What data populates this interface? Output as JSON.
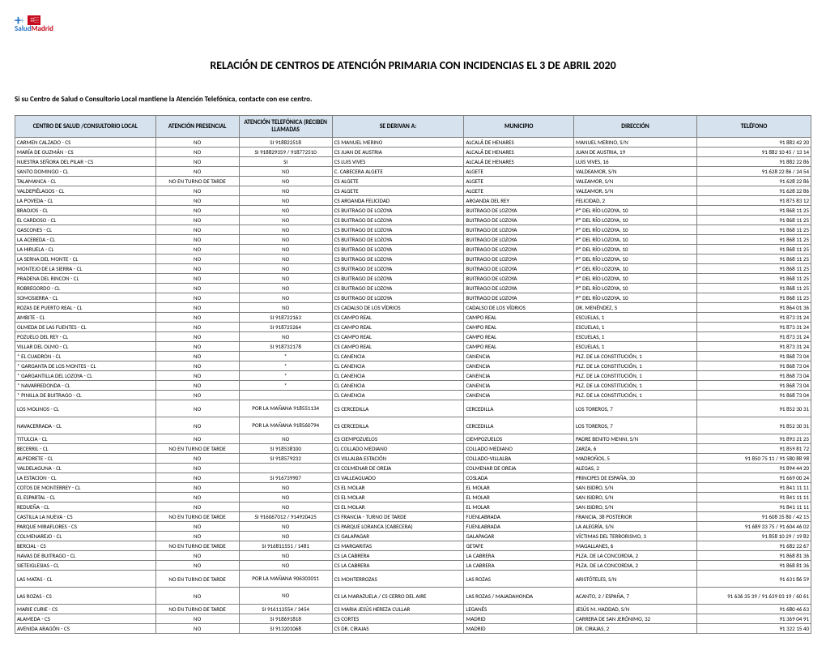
{
  "logo": {
    "brand_a": "Salud",
    "brand_b": "Madrid"
  },
  "title": "RELACIÓN DE CENTROS DE ATENCIÓN PRIMARIA CON INCIDENCIAS EL 3 DE ABRIL 2020",
  "subtitle": "Si su Centro de Salud o Consultorio Local mantiene la Atención Telefónica, contacte con ese centro.",
  "columns": [
    "CENTRO DE SALUD /CONSULTORIO LOCAL",
    "ATENCIÓN PRESENCIAL",
    "ATENCIÓN TELEFÓNICA (RECIBEN LLAMADAS",
    "SE DERIVAN A:",
    "MUNICIPIO",
    "DIRECCIÓN",
    "TELÉFONO"
  ],
  "col_align": [
    "left",
    "center",
    "center",
    "left",
    "left",
    "left",
    "right"
  ],
  "rows": [
    [
      "CARMEN CALZADO - CS",
      "NO",
      "SI     918822518",
      "CS MANUEL MERINO",
      "ALCALÁ DE HENARES",
      "MANUEL MERINO, S/N",
      "91 882 42 20"
    ],
    [
      "MARÍA DE GUZMÁN - CS",
      "NO",
      "SI     918829359 / 918772510",
      "CS JUAN DE AUSTRIA",
      "ALCALÁ DE HENARES",
      "JUAN DE AUSTRIA, 19",
      "91 882 10 45 / 13 14"
    ],
    [
      "NUESTRA SEÑORA DEL PILAR - CS",
      "NO",
      "SI",
      "CS LUIS VIVES",
      "ALCALÁ DE HENARES",
      "LUIS VIVES, 16",
      "91  882 22 86"
    ],
    [
      "SANTO DOMINGO - CL",
      "NO",
      "NO",
      "C. CABECERA ALGETE",
      "ALGETE",
      "VALDEAMOR, S/N",
      "91 628 22 86 / 24 54"
    ],
    [
      "TALAMANCA - CL",
      "NO EN TURNO DE TARDE",
      "NO",
      "CS ALGETE",
      "ALGETE",
      "VALEAMOR, S/N",
      "91 628 22 86"
    ],
    [
      "VALDEPIÉLAGOS - CL",
      "NO",
      "NO",
      "CS ALGETE",
      "ALGETE",
      "VALEAMOR, S/N",
      "91 628 22 86"
    ],
    [
      "LA POVEDA - CL",
      "NO",
      "NO",
      "CS ARGANDA FELICIDAD",
      "ARGANDA DEL REY",
      "FELICIDAD, 2",
      "91 875 83 12"
    ],
    [
      "BRAOJOS - CL",
      "NO",
      "NO",
      "CS BUITRAGO DE LOZOYA",
      "BUITRAGO DE LOZOYA",
      "Pº DEL RÍO LOZOYA, 10",
      "91 868 11 25"
    ],
    [
      "EL CARDOSO - CL",
      "NO",
      "NO",
      "CS BUITRAGO DE LOZOYA",
      "BUITRAGO DE LOZOYA",
      "Pº DEL RÍO LOZOYA, 10",
      "91 868 11 25"
    ],
    [
      "GASCONES - CL",
      "NO",
      "NO",
      "CS BUITRAGO DE LOZOYA",
      "BUITRAGO DE LOZOYA",
      "Pº DEL RÍO LOZOYA, 10",
      "91 868 11 25"
    ],
    [
      "LA ACEBEDA - CL",
      "NO",
      "NO",
      "CS BUITRAGO DE LOZOYA",
      "BUITRAGO DE LOZOYA",
      "Pº DEL RÍO LOZOYA, 10",
      "91 868 11 25"
    ],
    [
      "LA HIRUELA - CL",
      "NO",
      "NO",
      "CS BUITRAGO DE LOZOYA",
      "BUITRAGO DE LOZOYA",
      "Pº DEL RÍO LOZOYA, 10",
      "91 868 11 25"
    ],
    [
      "LA SERNA DEL MONTE - CL",
      "NO",
      "NO",
      "CS BUITRAGO DE LOZOYA",
      "BUITRAGO DE LOZOYA",
      "Pº DEL RÍO LOZOYA, 10",
      "91 868 11 25"
    ],
    [
      "MONTEJO DE LA SIERRA - CL",
      "NO",
      "NO",
      "CS BUITRAGO DE LOZOYA",
      "BUITRAGO DE LOZOYA",
      "Pº DEL RÍO LOZOYA, 10",
      "91 868 11 25"
    ],
    [
      "PRADENA DEL RINCON - CL",
      "NO",
      "NO",
      "CS BUITRAGO DE LOZOYA",
      "BUITRAGO DE LOZOYA",
      "Pº DEL RÍO LOZOYA, 10",
      "91 868 11 25"
    ],
    [
      "ROBREGORDO - CL",
      "NO",
      "NO",
      "CS BUITRAGO DE LOZOYA",
      "BUITRAGO DE LOZOYA",
      "Pº DEL RÍO LOZOYA, 10",
      "91 868 11 25"
    ],
    [
      "SOMOSIERRA - CL",
      "NO",
      "NO",
      "CS BUITRAGO DE LOZOYA",
      "BUITRAGO DE LOZOYA",
      "Pº DEL RÍO LOZOYA, 10",
      "91 868 11 25"
    ],
    [
      "ROZAS DE PUERTO REAL - CL",
      "NO",
      "NO",
      "CS CADALSO DE LOS VÍDRIOS",
      "CADALSO DE LOS VÍDRIOS",
      "DR. MENÉNDEZ, 5",
      "91 864 01 36"
    ],
    [
      "AMBITE - CL",
      "NO",
      "SI    918722163",
      "CS CAMPO REAL",
      "CAMPO REAL",
      "ESCUELAS, 1",
      "91 873 31 24"
    ],
    [
      "OLMEDA DE LAS FUENTES - CL",
      "NO",
      "SI    918725264",
      "CS CAMPO REAL",
      "CAMPO REAL",
      "ESCUELAS, 1",
      "91 873 31 24"
    ],
    [
      "POZUELO DEL REY - CL",
      "NO",
      "NO",
      "CS CAMPO REAL",
      "CAMPO REAL",
      "ESCUELAS, 1",
      "91 873 31 24"
    ],
    [
      "VILLAR DEL OLMO - CL",
      "NO",
      "SI    918732178",
      "CS CAMPO REAL",
      "CAMPO REAL",
      "ESCUELAS, 1",
      "91 873 31 24"
    ],
    [
      "* EL CUADRON - CL",
      "NO",
      "*",
      "CL CANENCIA",
      "CANENCIA",
      "PLZ. DE LA CONSTITUCIÓN, 1",
      "91 868 73 04"
    ],
    [
      "* GARGANTA DE LOS MONTES - CL",
      "NO",
      "*",
      "CL CANENCIA",
      "CANENCIA",
      "PLZ. DE LA CONSTITUCIÓN, 1",
      "91 868 73 04"
    ],
    [
      "* GARGANTILLA DEL LOZOYA - CL",
      "NO",
      "*",
      "CL CANENCIA",
      "CANENCIA",
      "PLZ. DE LA CONSTITUCIÓN, 1",
      "91 868 73 04"
    ],
    [
      "* NAVARREDONDA - CL",
      "NO",
      "*",
      "CL CANENCIA",
      "CANENCIA",
      "PLZ. DE LA CONSTITUCIÓN, 1",
      "91 868 73 04"
    ],
    [
      "* PINILLA DE BUITRAGO - CL",
      "NO",
      "",
      "CL CANENCIA",
      "CANENCIA",
      "PLZ. DE LA CONSTITUCIÓN, 1",
      "91 868 73 04"
    ],
    [
      "LOS MOLINOS - CL",
      "NO",
      "POR LA MAÑANA 918551134",
      "CS CERCEDILLA",
      "CERCEDILLA",
      "LOS TOREROS, 7",
      "91 852 30 31"
    ],
    [
      "NAVACERRADA - CL",
      "NO",
      "POR LA MAÑANA 918560794",
      "CS CERCEDILLA",
      "CERCEDILLA",
      "LOS TOREROS, 7",
      "91 852 30 31"
    ],
    [
      "TITULCIA - CL",
      "NO",
      "NO",
      "CS CIEMPOZUELOS",
      "CIEMPOZUELOS",
      "PADRE BENITO MENNI, S/N",
      "91 893 21 25"
    ],
    [
      "BECERRIL - CL",
      "NO EN TURNO DE TARDE",
      "SI    918538100",
      "CL COLLADO MEDIANO",
      "COLLADO MEDIANO",
      "ZARZA, 6",
      "91 859 81 72"
    ],
    [
      "ALPEDRETE - CL",
      "NO",
      "SI   918579232",
      "CS VILLALBA ESTACIÓN",
      "COLLADO-VILLALBA",
      "MADROÑOS, 5",
      "91 850 75 11 / 91 580 88 98"
    ],
    [
      "VALDELAGUNA - CL",
      "NO",
      "",
      "CS COLMENAR DE OREJA",
      "COLMENAR DE OREJA",
      "ALEGAS, 2",
      "91 894 44 20"
    ],
    [
      "LA ESTACION - CL",
      "NO",
      "SI   916739907",
      "CS VALLEAGUADO",
      "COSLADA",
      "PRINCIPES DE ESPAÑA, 30",
      "91 669 00 24"
    ],
    [
      "COTOS DE MONTERREY - CL",
      "NO",
      "NO",
      "CS EL MOLAR",
      "EL MOLAR",
      "SAN ISIDRO, S/N",
      "91 841 11 11"
    ],
    [
      "EL ESPARTAL - CL",
      "NO",
      "NO",
      "CS EL MOLAR",
      "EL MOLAR",
      "SAN ISIDRO, S/N",
      "91 841 11 11"
    ],
    [
      "REDUEÑA - CL",
      "NO",
      "NO",
      "CS EL MOLAR",
      "EL MOLAR",
      "SAN ISIDRO, S/N",
      "91 841 11 11"
    ],
    [
      "CASTILLA LA NUEVA - CS",
      "NO EN TURNO DE TARDE",
      "SI    916067012 / 914920425",
      "CS FRANCIA - TURNO DE TARDE",
      "FUENLABRADA",
      "FRANCIA, 38 POSTERIOR",
      "91 608 35 80 / 42 15"
    ],
    [
      "PARQUE MIRAFLORES - CS",
      "NO",
      "NO",
      "CS PARQUE LORANCA (CABECERA)",
      "FUENLABRADA",
      "LA ALEGRÍA, S/N",
      "91 689 33 75 / 91 604 46 02"
    ],
    [
      "COLMENAREJO - CL",
      "NO",
      "NO",
      "CS GALAPAGAR",
      "GALAPAGAR",
      "VÍCTIMAS DEL TERRORISMO, 3",
      "91 858 10 29 / 19 82"
    ],
    [
      "BERCIAL - CS",
      "NO EN TURNO DE TARDE",
      "SI    916811551 / 1481",
      "CS MARGARITAS",
      "GETAFE",
      "MAGALLANES, 6",
      "91 682 22 67"
    ],
    [
      "NAVAS DE BUITRAGO - CL",
      "NO",
      "NO",
      "CS LA CABRERA",
      "LA CABRERA",
      "PLZA. DE LA CONCORDIA, 2",
      "91 868 81 36"
    ],
    [
      "SIETEIGLESIAS - CL",
      "NO",
      "NO",
      "CS LA CABRERA",
      "LA CABRERA",
      "PLZA. DE LA CONCORDIA, 2",
      "91 868 81 36"
    ],
    [
      "LAS MATAS - CL",
      "NO EN TURNO DE TARDE",
      "POR LA MAÑANA 906303011",
      "CS MONTERROZAS",
      "LAS ROZAS",
      "ARISTÓTELES, S/N",
      "91 631 86 59"
    ],
    [
      "LAS ROZAS - CS",
      "NO",
      "NO",
      "CS LA MARAZUELA / CS CERRO DEL AIRE",
      "LAS ROZAS / MAJADAHONDA",
      "ACANTO, 2 / ESPAÑA, 7",
      "91 636 35 39 / 91 639 03 19 / 60 61"
    ],
    [
      "MARIE CURIE - CS",
      "NO EN TURNO DE TARDE",
      "SI    916113554 / 3454",
      "CS MARIA JESÚS HEREZA CULLAR",
      "LEGANÉS",
      "JESÚS M. HADDAD, S/N",
      "91 680 46 63"
    ],
    [
      "ALAMEDA - CS",
      "NO",
      "SI   918691818",
      "CS CORTES",
      "MADRID",
      "CARRERA DE SAN JERÓNIMO, 32",
      "91 369 04 91"
    ],
    [
      "AVENIDA ARAGÓN - CS",
      "NO",
      "SI   913201068",
      "CS DR. CIRAJAS",
      "MADRID",
      "DR. CIRAJAS, 2",
      "91 322 15 40"
    ]
  ],
  "two_line_rows": [
    27,
    28,
    43,
    44
  ],
  "colors": {
    "header_bg": "#d6e3ef",
    "border": "#808080",
    "brand_blue": "#2b78c6",
    "brand_red": "#c60b1e"
  }
}
